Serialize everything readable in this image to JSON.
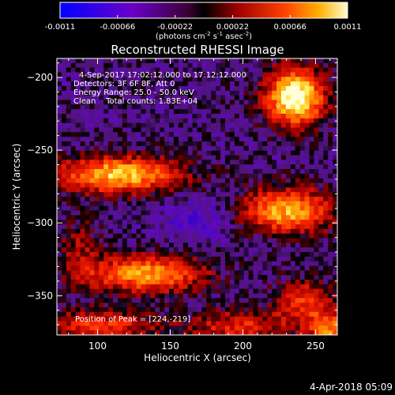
{
  "colorbar": {
    "ticks": [
      "-0.0011",
      "-0.00066",
      "-0.00022",
      "0.00022",
      "0.00066",
      "0.0011"
    ],
    "tick_values": [
      -0.0011,
      -0.00066,
      -0.00022,
      0.00022,
      0.00066,
      0.0011
    ],
    "units_parts": [
      "(photons cm",
      "-2",
      " s",
      "-1",
      " asec",
      "-2",
      ")"
    ]
  },
  "chart_data": {
    "type": "heatmap",
    "title": "Reconstructed RHESSI Image",
    "xlabel": "Heliocentric X (arcsec)",
    "ylabel": "Heliocentric Y (arcsec)",
    "xlim": [
      72,
      265
    ],
    "ylim": [
      -377,
      -187
    ],
    "x_ticks": [
      100,
      150,
      200,
      250
    ],
    "y_ticks": [
      -200,
      -250,
      -300,
      -350
    ],
    "value_range": [
      -0.0011,
      0.0011
    ],
    "peak": [
      224,
      -219
    ],
    "annotations": {
      "time": "4-Sep-2017 17:02:12.000 to 17:12:12.000",
      "detectors": "Detectors: 3F 6F 8F, Att 0",
      "energy": "Energy Range: 25.0 - 50.0 keV",
      "clean": "Clean    Total counts: 1.83E+04",
      "peak_label": "Position of Peak = [224,-219]"
    }
  },
  "footer": {
    "date": "4-Apr-2018 05:09"
  },
  "colors": {
    "background": "#000000",
    "foreground": "#ffffff"
  }
}
